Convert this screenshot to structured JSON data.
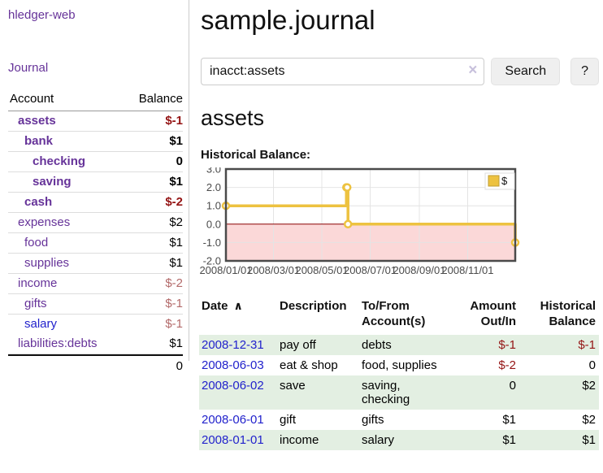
{
  "app": {
    "title": "hledger-web"
  },
  "sidebar": {
    "journal_link": "Journal",
    "accounts_table": {
      "col_account": "Account",
      "col_balance": "Balance",
      "rows": [
        {
          "name": "assets",
          "balance": "$-1",
          "indent": 1,
          "bold": true,
          "neg": "dark"
        },
        {
          "name": "bank",
          "balance": "$1",
          "indent": 2,
          "bold": true
        },
        {
          "name": "checking",
          "balance": "0",
          "indent": 3,
          "bold": true
        },
        {
          "name": "saving",
          "balance": "$1",
          "indent": 3,
          "bold": true
        },
        {
          "name": "cash",
          "balance": "$-2",
          "indent": 2,
          "bold": true,
          "neg": "dark"
        },
        {
          "name": "expenses",
          "balance": "$2",
          "indent": 1
        },
        {
          "name": "food",
          "balance": "$1",
          "indent": 2
        },
        {
          "name": "supplies",
          "balance": "$1",
          "indent": 2
        },
        {
          "name": "income",
          "balance": "$-2",
          "indent": 1,
          "neg": "light"
        },
        {
          "name": "gifts",
          "balance": "$-1",
          "indent": 2,
          "neg": "light"
        },
        {
          "name": "salary",
          "balance": "$-1",
          "indent": 2,
          "neg": "light",
          "blue": true
        },
        {
          "name": "liabilities:debts",
          "balance": "$1",
          "indent": 1
        }
      ],
      "total": "0"
    }
  },
  "header": {
    "title": "sample.journal"
  },
  "search": {
    "value": "inacct:assets",
    "clear_icon": "×",
    "search_button": "Search",
    "help_button": "?"
  },
  "account_page": {
    "heading": "assets",
    "chart_title": "Historical Balance:"
  },
  "chart_data": {
    "type": "line",
    "step": true,
    "title": "Historical Balance",
    "series": [
      {
        "name": "$",
        "color": "#edc240",
        "points": [
          [
            "2008-01-01",
            1
          ],
          [
            "2008-06-01",
            2
          ],
          [
            "2008-06-02",
            2
          ],
          [
            "2008-06-03",
            0
          ],
          [
            "2008-12-31",
            -1
          ]
        ]
      }
    ],
    "x_range": [
      "2008-01-01",
      "2008-12-31"
    ],
    "xticks": [
      {
        "date": "2008-01-01",
        "label": "2008/01/01"
      },
      {
        "date": "2008-03-01",
        "label": "2008/03/01"
      },
      {
        "date": "2008-05-01",
        "label": "2008/05/01"
      },
      {
        "date": "2008-07-01",
        "label": "2008/07/01"
      },
      {
        "date": "2008-09-01",
        "label": "2008/09/01"
      },
      {
        "date": "2008-11-01",
        "label": "2008/11/01"
      }
    ],
    "yticks": [
      3.0,
      2.0,
      1.0,
      0.0,
      -1.0,
      -2.0
    ],
    "ylim": [
      -2,
      3
    ],
    "grid": true,
    "legend_position": "top-right",
    "legend_label": "$",
    "colors": {
      "negative_fill": "#fbd8d8",
      "zero_line": "#8b0000",
      "grid_line": "#e4e4e4",
      "border": "#4a4a4a",
      "tick_text": "#4a4a4a",
      "marker_fill": "#ffffff",
      "legend_border": "#dddddd"
    }
  },
  "transactions": {
    "columns": [
      "Date",
      "Description",
      "To/From Account(s)",
      "Amount Out/In",
      "Historical Balance"
    ],
    "sort_icon": "∧",
    "rows": [
      {
        "date": "2008-12-31",
        "description": "pay off",
        "accounts": "debts",
        "amount": "$-1",
        "balance": "$-1"
      },
      {
        "date": "2008-06-03",
        "description": "eat & shop",
        "accounts": "food, supplies",
        "amount": "$-2",
        "balance": "0"
      },
      {
        "date": "2008-06-02",
        "description": "save",
        "accounts": "saving, checking",
        "amount": "0",
        "balance": "$2"
      },
      {
        "date": "2008-06-01",
        "description": "gift",
        "accounts": "gifts",
        "amount": "$1",
        "balance": "$2"
      },
      {
        "date": "2008-01-01",
        "description": "income",
        "accounts": "salary",
        "amount": "$1",
        "balance": "$1"
      }
    ]
  },
  "colors": {
    "link_purple": "#663399",
    "link_blue": "#2222cc",
    "negative_dark": "#941414",
    "negative_light": "#b36a6a",
    "row_green": "#e3efe2"
  }
}
